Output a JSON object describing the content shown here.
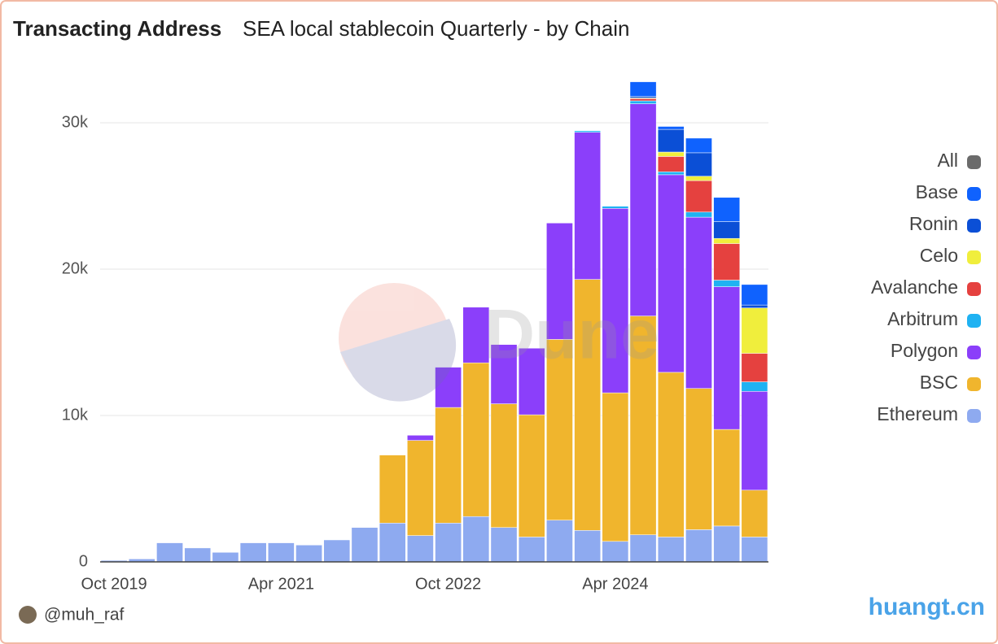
{
  "chart_data": {
    "type": "stacked_bar",
    "title": "Transacting Address",
    "subtitle": "SEA local stablecoin Quarterly - by Chain",
    "author": "@muh_raf",
    "watermark": "Dune",
    "site": "huangt.cn",
    "categories": [
      "Oct 2019",
      null,
      null,
      null,
      null,
      null,
      "Apr 2021",
      null,
      null,
      null,
      null,
      null,
      "Oct 2022",
      null,
      null,
      null,
      null,
      null,
      "Apr 2024",
      null,
      null,
      null,
      null,
      null
    ],
    "ylim": [
      0,
      33000
    ],
    "yticks": [
      0,
      {
        "value": 10000,
        "label": "10k"
      },
      {
        "value": 20000,
        "label": "20k"
      },
      {
        "value": 30000,
        "label": "30k"
      }
    ],
    "grid": true,
    "series": [
      {
        "name": "All",
        "color": "#6b6b6b",
        "values": [
          null,
          null,
          null,
          null,
          null,
          null,
          null,
          null,
          null,
          null,
          null,
          null,
          null,
          null,
          null,
          null,
          null,
          null,
          null,
          null,
          null,
          null,
          null,
          null
        ]
      },
      {
        "name": "Base",
        "color": "#0f62fe",
        "values": [
          null,
          null,
          null,
          null,
          null,
          null,
          null,
          null,
          null,
          null,
          null,
          null,
          null,
          null,
          null,
          null,
          null,
          null,
          null,
          1000,
          200,
          1000,
          1650,
          1400
        ]
      },
      {
        "name": "Ronin",
        "color": "#0b4fd6",
        "values": [
          null,
          null,
          null,
          null,
          null,
          null,
          null,
          null,
          null,
          null,
          null,
          null,
          null,
          null,
          null,
          null,
          null,
          null,
          null,
          100,
          1550,
          1600,
          1150,
          200
        ]
      },
      {
        "name": "Celo",
        "color": "#f0ee3c",
        "values": [
          null,
          null,
          null,
          null,
          null,
          null,
          null,
          null,
          null,
          null,
          null,
          null,
          null,
          null,
          null,
          null,
          null,
          null,
          null,
          50,
          300,
          300,
          350,
          3100
        ]
      },
      {
        "name": "Avalanche",
        "color": "#e5413f",
        "values": [
          null,
          null,
          null,
          null,
          null,
          null,
          null,
          null,
          null,
          null,
          null,
          null,
          null,
          null,
          null,
          null,
          null,
          null,
          null,
          150,
          1050,
          2150,
          2500,
          1950
        ]
      },
      {
        "name": "Arbitrum",
        "color": "#1fb2f2",
        "values": [
          null,
          null,
          null,
          null,
          null,
          null,
          null,
          null,
          null,
          null,
          null,
          null,
          null,
          null,
          null,
          null,
          null,
          100,
          150,
          200,
          200,
          350,
          450,
          650
        ]
      },
      {
        "name": "Polygon",
        "color": "#8b3ffa",
        "values": [
          null,
          null,
          null,
          null,
          null,
          null,
          null,
          null,
          null,
          null,
          null,
          350,
          2750,
          3800,
          4050,
          4550,
          7950,
          10050,
          12600,
          14500,
          13500,
          11700,
          9750,
          6750
        ]
      },
      {
        "name": "BSC",
        "color": "#f0b52d",
        "values": [
          null,
          null,
          null,
          null,
          null,
          null,
          null,
          null,
          null,
          null,
          4650,
          6500,
          7900,
          10500,
          8450,
          8350,
          12350,
          17150,
          10150,
          14950,
          11250,
          9650,
          6600,
          3200
        ]
      },
      {
        "name": "Ethereum",
        "color": "#8eaaf0",
        "values": [
          100,
          200,
          1300,
          950,
          650,
          1300,
          1300,
          1150,
          1500,
          2350,
          2650,
          1800,
          2650,
          3100,
          2350,
          1700,
          2850,
          2150,
          1400,
          1850,
          1700,
          2200,
          2450,
          1700
        ]
      }
    ]
  }
}
